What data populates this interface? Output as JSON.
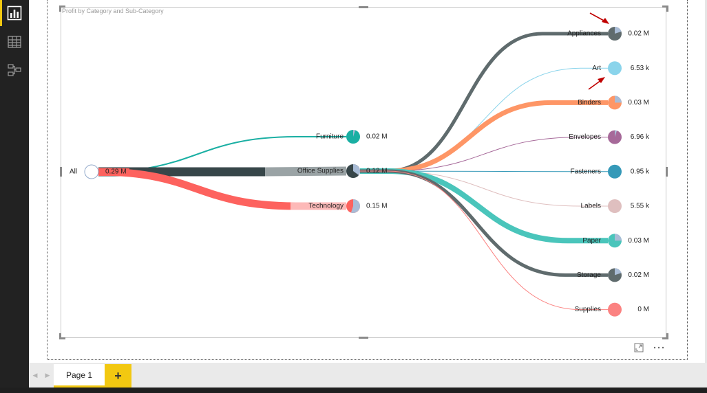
{
  "visual": {
    "title": "Profit by Category and Sub-Category"
  },
  "decomposition_tree": {
    "root": {
      "label": "All",
      "value": "0.29 M",
      "color": "#ffffff"
    },
    "categories": [
      {
        "label": "Furniture",
        "value": "0.02 M",
        "color": "#1aafa3"
      },
      {
        "label": "Office Supplies",
        "value": "0.12 M",
        "color": "#374649"
      },
      {
        "label": "Technology",
        "value": "0.15 M",
        "color": "#fd625e"
      }
    ],
    "subcategories": [
      {
        "label": "Appliances",
        "value": "0.02 M",
        "color": "#5f6b6d"
      },
      {
        "label": "Art",
        "value": "6.53 k",
        "color": "#8ad4eb"
      },
      {
        "label": "Binders",
        "value": "0.03 M",
        "color": "#fe9666"
      },
      {
        "label": "Envelopes",
        "value": "6.96 k",
        "color": "#a66999"
      },
      {
        "label": "Fasteners",
        "value": "0.95 k",
        "color": "#3599b8"
      },
      {
        "label": "Labels",
        "value": "5.55 k",
        "color": "#dfbfbf"
      },
      {
        "label": "Paper",
        "value": "0.03 M",
        "color": "#4ac5bb"
      },
      {
        "label": "Storage",
        "value": "0.02 M",
        "color": "#5f6b6d"
      },
      {
        "label": "Supplies",
        "value": "0 M",
        "color": "#fb8281"
      }
    ]
  },
  "pages": {
    "tabs": [
      {
        "label": "Page 1"
      }
    ],
    "add_label": "+"
  },
  "icons": {
    "report_view": "bar-chart-icon",
    "data_view": "table-grid-icon",
    "model_view": "relationship-icon",
    "focus_mode": "focus-mode-icon",
    "more_options": "more-options-icon"
  },
  "colors": {
    "accent": "#f2c811",
    "annotation_arrow": "#c00000"
  }
}
